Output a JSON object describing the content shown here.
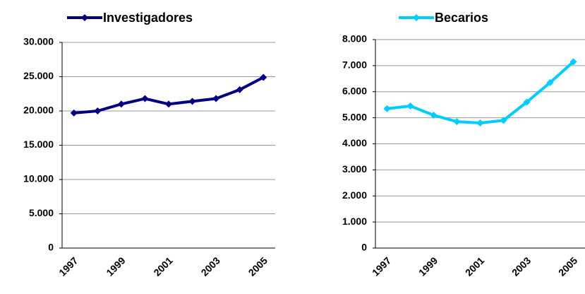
{
  "chart_data": [
    {
      "type": "line",
      "legend": "top",
      "grid": true,
      "categories": [
        "1997",
        null,
        "1999",
        null,
        "2001",
        null,
        "2003",
        null,
        "2005"
      ],
      "series": [
        {
          "name": "Investigadores",
          "color": "#000080",
          "values": [
            19700,
            20000,
            21000,
            21800,
            21000,
            21400,
            21800,
            23100,
            24900
          ]
        }
      ],
      "ylim": [
        0,
        30000
      ],
      "yticks": [
        0,
        {
          "value": 5000,
          "label": "5.000"
        },
        {
          "value": 10000,
          "label": "10.000"
        },
        {
          "value": 15000,
          "label": "15.000"
        },
        {
          "value": 20000,
          "label": "20.000"
        },
        {
          "value": 25000,
          "label": "25.000"
        },
        {
          "value": 30000,
          "label": "30.000"
        }
      ]
    },
    {
      "type": "line",
      "legend": "top",
      "grid": true,
      "categories": [
        "1997",
        null,
        "1999",
        null,
        "2001",
        null,
        "2003",
        null,
        "2005"
      ],
      "series": [
        {
          "name": "Becarios",
          "color": "#00CCFF",
          "values": [
            5350,
            5450,
            5100,
            4850,
            4800,
            4900,
            5600,
            6350,
            7150
          ]
        }
      ],
      "ylim": [
        0,
        8000
      ],
      "yticks": [
        0,
        {
          "value": 1000,
          "label": "1.000"
        },
        {
          "value": 2000,
          "label": "2.000"
        },
        {
          "value": 3000,
          "label": "3.000"
        },
        {
          "value": 4000,
          "label": "4.000"
        },
        {
          "value": 5000,
          "label": "5.000"
        },
        {
          "value": 6000,
          "label": "6.000"
        },
        {
          "value": 7000,
          "label": "7.000"
        },
        {
          "value": 8000,
          "label": "8.000"
        }
      ]
    }
  ]
}
